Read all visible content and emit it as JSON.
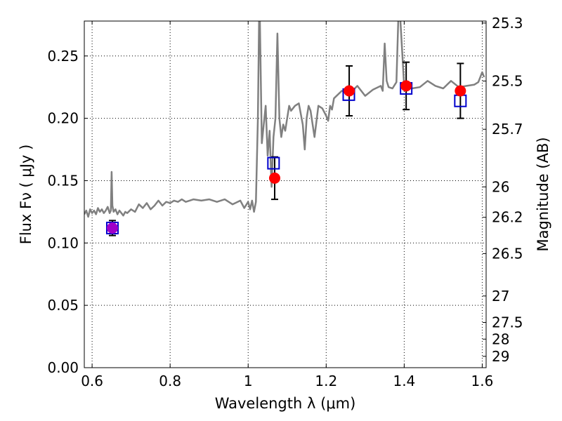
{
  "chart_data": {
    "type": "scatter",
    "xlabel": "Wavelength  λ (μm)",
    "ylabel": "Flux  Fν  ( μJy )",
    "ylabel_right": "Magnitude (AB)",
    "xlim": [
      0.58,
      1.61
    ],
    "ylim": [
      0.0,
      0.278
    ],
    "grid": true,
    "x_ticks": [
      0.6,
      0.8,
      1.0,
      1.2,
      1.4,
      1.6
    ],
    "x_tick_labels": [
      "0.6",
      "0.8",
      "1",
      "1.2",
      "1.4",
      "1.6"
    ],
    "y_ticks": [
      0.0,
      0.05,
      0.1,
      0.15,
      0.2,
      0.25
    ],
    "y_tick_labels": [
      "0.00",
      "0.05",
      "0.10",
      "0.15",
      "0.20",
      "0.25"
    ],
    "right_ticks": [
      {
        "label": "25.3",
        "flux": 0.2764
      },
      {
        "label": "25.5",
        "flux": 0.2299
      },
      {
        "label": "25.7",
        "flux": 0.1912
      },
      {
        "label": "26",
        "flux": 0.145
      },
      {
        "label": "26.2",
        "flux": 0.1206
      },
      {
        "label": "26.5",
        "flux": 0.0915
      },
      {
        "label": "27",
        "flux": 0.0575
      },
      {
        "label": "27.5",
        "flux": 0.0363
      },
      {
        "label": "28",
        "flux": 0.0229
      },
      {
        "label": "29",
        "flux": 0.0091
      }
    ],
    "series": [
      {
        "name": "model spectrum",
        "kind": "line",
        "color": "#808080",
        "x": [
          0.58,
          0.585,
          0.59,
          0.595,
          0.6,
          0.605,
          0.61,
          0.615,
          0.62,
          0.625,
          0.63,
          0.635,
          0.64,
          0.645,
          0.648,
          0.65,
          0.652,
          0.655,
          0.66,
          0.665,
          0.67,
          0.675,
          0.68,
          0.685,
          0.69,
          0.7,
          0.71,
          0.72,
          0.73,
          0.74,
          0.75,
          0.76,
          0.77,
          0.78,
          0.79,
          0.8,
          0.81,
          0.82,
          0.83,
          0.84,
          0.85,
          0.86,
          0.88,
          0.9,
          0.92,
          0.94,
          0.96,
          0.98,
          0.99,
          1.0,
          1.005,
          1.01,
          1.015,
          1.02,
          1.025,
          1.028,
          1.03,
          1.035,
          1.045,
          1.05,
          1.055,
          1.06,
          1.065,
          1.07,
          1.075,
          1.08,
          1.085,
          1.09,
          1.095,
          1.1,
          1.105,
          1.11,
          1.12,
          1.13,
          1.14,
          1.145,
          1.15,
          1.155,
          1.16,
          1.17,
          1.18,
          1.19,
          1.2,
          1.205,
          1.21,
          1.215,
          1.22,
          1.24,
          1.26,
          1.28,
          1.3,
          1.32,
          1.34,
          1.345,
          1.35,
          1.355,
          1.36,
          1.37,
          1.38,
          1.385,
          1.39,
          1.4,
          1.42,
          1.44,
          1.46,
          1.48,
          1.5,
          1.52,
          1.54,
          1.56,
          1.58,
          1.59,
          1.6,
          1.605
        ],
        "y": [
          0.123,
          0.126,
          0.121,
          0.127,
          0.124,
          0.126,
          0.123,
          0.128,
          0.125,
          0.127,
          0.124,
          0.126,
          0.129,
          0.124,
          0.126,
          0.157,
          0.13,
          0.125,
          0.127,
          0.123,
          0.126,
          0.124,
          0.122,
          0.125,
          0.124,
          0.127,
          0.125,
          0.131,
          0.128,
          0.132,
          0.127,
          0.13,
          0.134,
          0.13,
          0.133,
          0.132,
          0.134,
          0.133,
          0.135,
          0.133,
          0.134,
          0.135,
          0.134,
          0.135,
          0.133,
          0.135,
          0.131,
          0.134,
          0.128,
          0.133,
          0.127,
          0.134,
          0.125,
          0.133,
          0.2,
          0.28,
          0.28,
          0.18,
          0.21,
          0.17,
          0.19,
          0.145,
          0.185,
          0.2,
          0.268,
          0.2,
          0.185,
          0.195,
          0.19,
          0.2,
          0.21,
          0.206,
          0.21,
          0.212,
          0.195,
          0.175,
          0.2,
          0.21,
          0.206,
          0.185,
          0.21,
          0.208,
          0.202,
          0.198,
          0.21,
          0.207,
          0.216,
          0.222,
          0.22,
          0.226,
          0.218,
          0.223,
          0.226,
          0.222,
          0.26,
          0.23,
          0.225,
          0.224,
          0.229,
          0.28,
          0.28,
          0.225,
          0.224,
          0.225,
          0.23,
          0.226,
          0.224,
          0.23,
          0.225,
          0.226,
          0.227,
          0.229,
          0.237,
          0.233
        ]
      },
      {
        "name": "model photometry",
        "kind": "open-square",
        "color": "#0000cc",
        "x": [
          0.652,
          1.065,
          1.258,
          1.405,
          1.544
        ],
        "y": [
          0.112,
          0.164,
          0.219,
          0.224,
          0.214
        ]
      },
      {
        "name": "observed photometry",
        "kind": "filled-circle",
        "color": "#ff0000",
        "x": [
          0.652,
          1.068,
          1.259,
          1.405,
          1.544
        ],
        "y": [
          0.112,
          0.152,
          0.222,
          0.226,
          0.222
        ],
        "yerr": [
          0.006,
          0.017,
          0.02,
          0.019,
          0.022
        ],
        "point_colors": [
          "#a000c8",
          "#ff0000",
          "#ff0000",
          "#ff0000",
          "#ff0000"
        ]
      }
    ]
  }
}
